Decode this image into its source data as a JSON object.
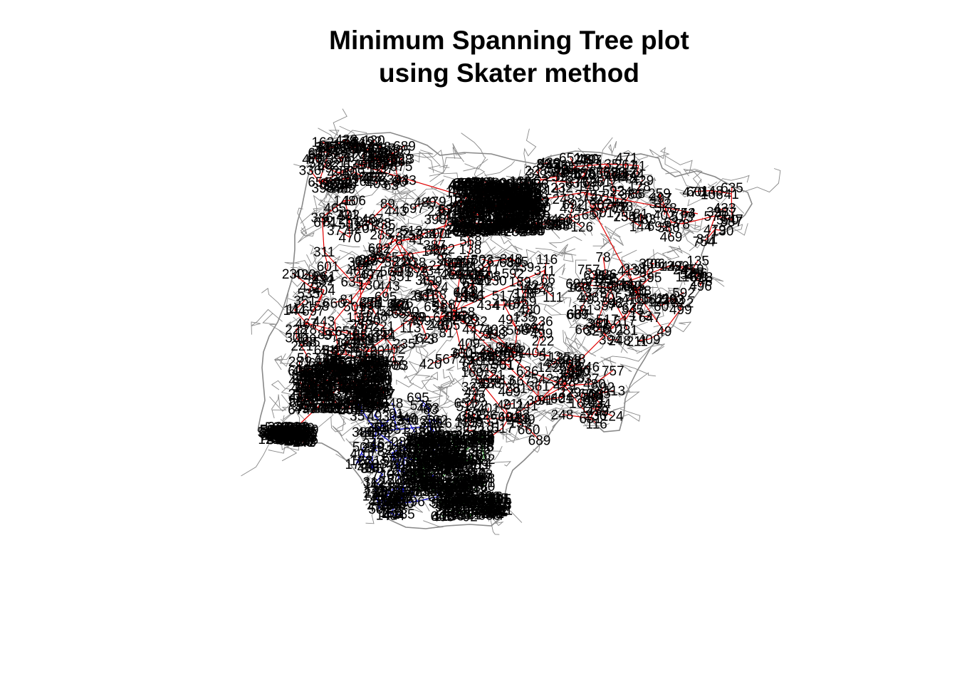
{
  "plot": {
    "title_line_1": "Minimum Spanning Tree plot",
    "title_line_2": "using Skater method"
  },
  "colors": {
    "background": "#ffffff",
    "boundary": "#888888",
    "cluster_1_edges": "#e00000",
    "cluster_2_edges": "#0000cc",
    "cluster_3_edges": "#1a8a1a",
    "labels": "#000000"
  },
  "legend": "none",
  "node_labels": [
    "246",
    "689",
    "322",
    "226",
    "647",
    "575",
    "78",
    "41",
    "44",
    "635",
    "63",
    "311",
    "259",
    "570",
    "386",
    "148",
    "479",
    "601",
    "387",
    "312",
    "398",
    "568",
    "402",
    "433",
    "470",
    "469",
    "754",
    "753",
    "106",
    "130",
    "377",
    "497",
    "513",
    "692",
    "467",
    "404",
    "465",
    "158",
    "89",
    "432",
    "285",
    "141",
    "228",
    "501",
    "220",
    "144",
    "138",
    "489",
    "300",
    "261",
    "471",
    "674",
    "567",
    "221",
    "375",
    "230",
    "697",
    "88",
    "235",
    "234",
    "657",
    "443",
    "261",
    "738",
    "111",
    "81",
    "232",
    "128",
    "147",
    "420",
    "351",
    "126",
    "482",
    "252",
    "83",
    "429",
    "767",
    "535",
    "660",
    "636",
    "651",
    "248",
    "121",
    "480",
    "486",
    "434",
    "483",
    "110",
    "301",
    "390",
    "139",
    "413",
    "560",
    "695",
    "96",
    "424",
    "49",
    "229",
    "517",
    "517",
    "91",
    "395",
    "348",
    "651",
    "499",
    "631",
    "394",
    "637",
    "459",
    "496",
    "740",
    "236",
    "503",
    "438",
    "757",
    "628",
    "667",
    "241",
    "60",
    "601",
    "438",
    "439",
    "409",
    "403",
    "92",
    "382",
    "508",
    "160",
    "375",
    "135",
    "401",
    "406",
    "336",
    "281",
    "49",
    "66",
    "305",
    "505",
    "248",
    "113",
    "162",
    "222",
    "327",
    "345",
    "361",
    "173",
    "181",
    "73",
    "124",
    "357",
    "116",
    "211",
    "233",
    "542",
    "447",
    "122",
    "135",
    "592"
  ]
}
